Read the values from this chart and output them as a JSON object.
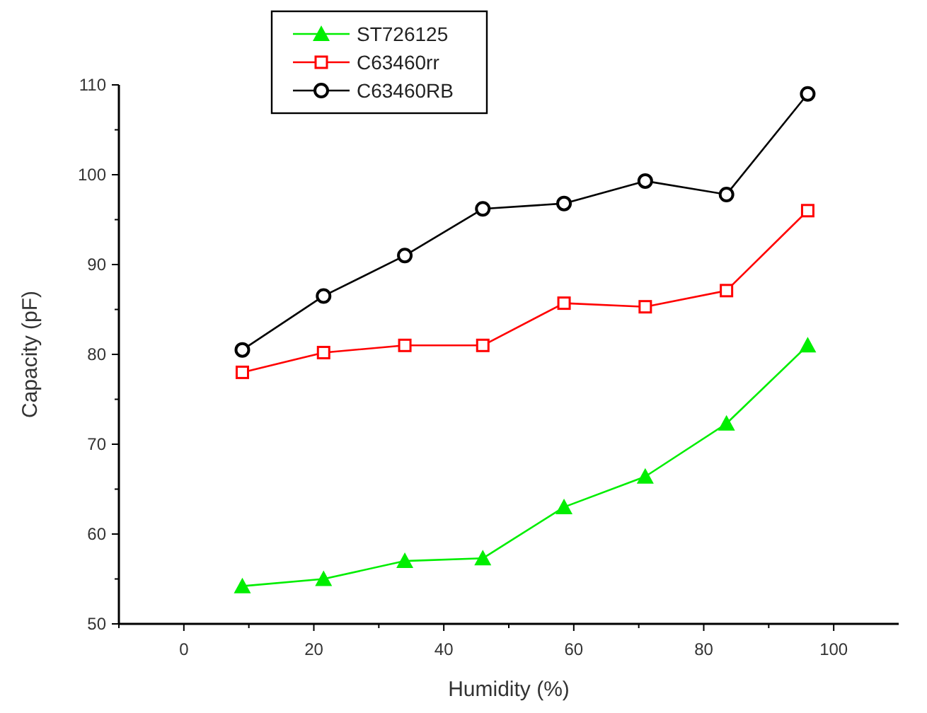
{
  "chart_data": {
    "type": "line",
    "xlabel": "Humidity (%)",
    "ylabel": "Capacity (pF)",
    "x": [
      9,
      21.5,
      34,
      46,
      58.5,
      71,
      83.5,
      96
    ],
    "xlim": [
      -10,
      110
    ],
    "xticks": [
      0,
      20,
      40,
      60,
      80,
      100
    ],
    "ylim": [
      50,
      110
    ],
    "yticks": [
      50,
      60,
      70,
      80,
      90,
      100,
      110
    ],
    "grid": false,
    "legend": "top",
    "series": [
      {
        "name": "ST726125",
        "color": "#00ee00",
        "marker": "triangle",
        "values": [
          54.2,
          55,
          57,
          57.3,
          63,
          66.4,
          72.3,
          81
        ]
      },
      {
        "name": "C63460rr",
        "color": "#ff0000",
        "marker": "square",
        "values": [
          78,
          80.2,
          81,
          81,
          85.7,
          85.3,
          87.1,
          96
        ]
      },
      {
        "name": "C63460RB",
        "color": "#000000",
        "marker": "circle",
        "values": [
          80.5,
          86.5,
          91,
          96.2,
          96.8,
          99.3,
          97.8,
          109
        ]
      }
    ]
  }
}
